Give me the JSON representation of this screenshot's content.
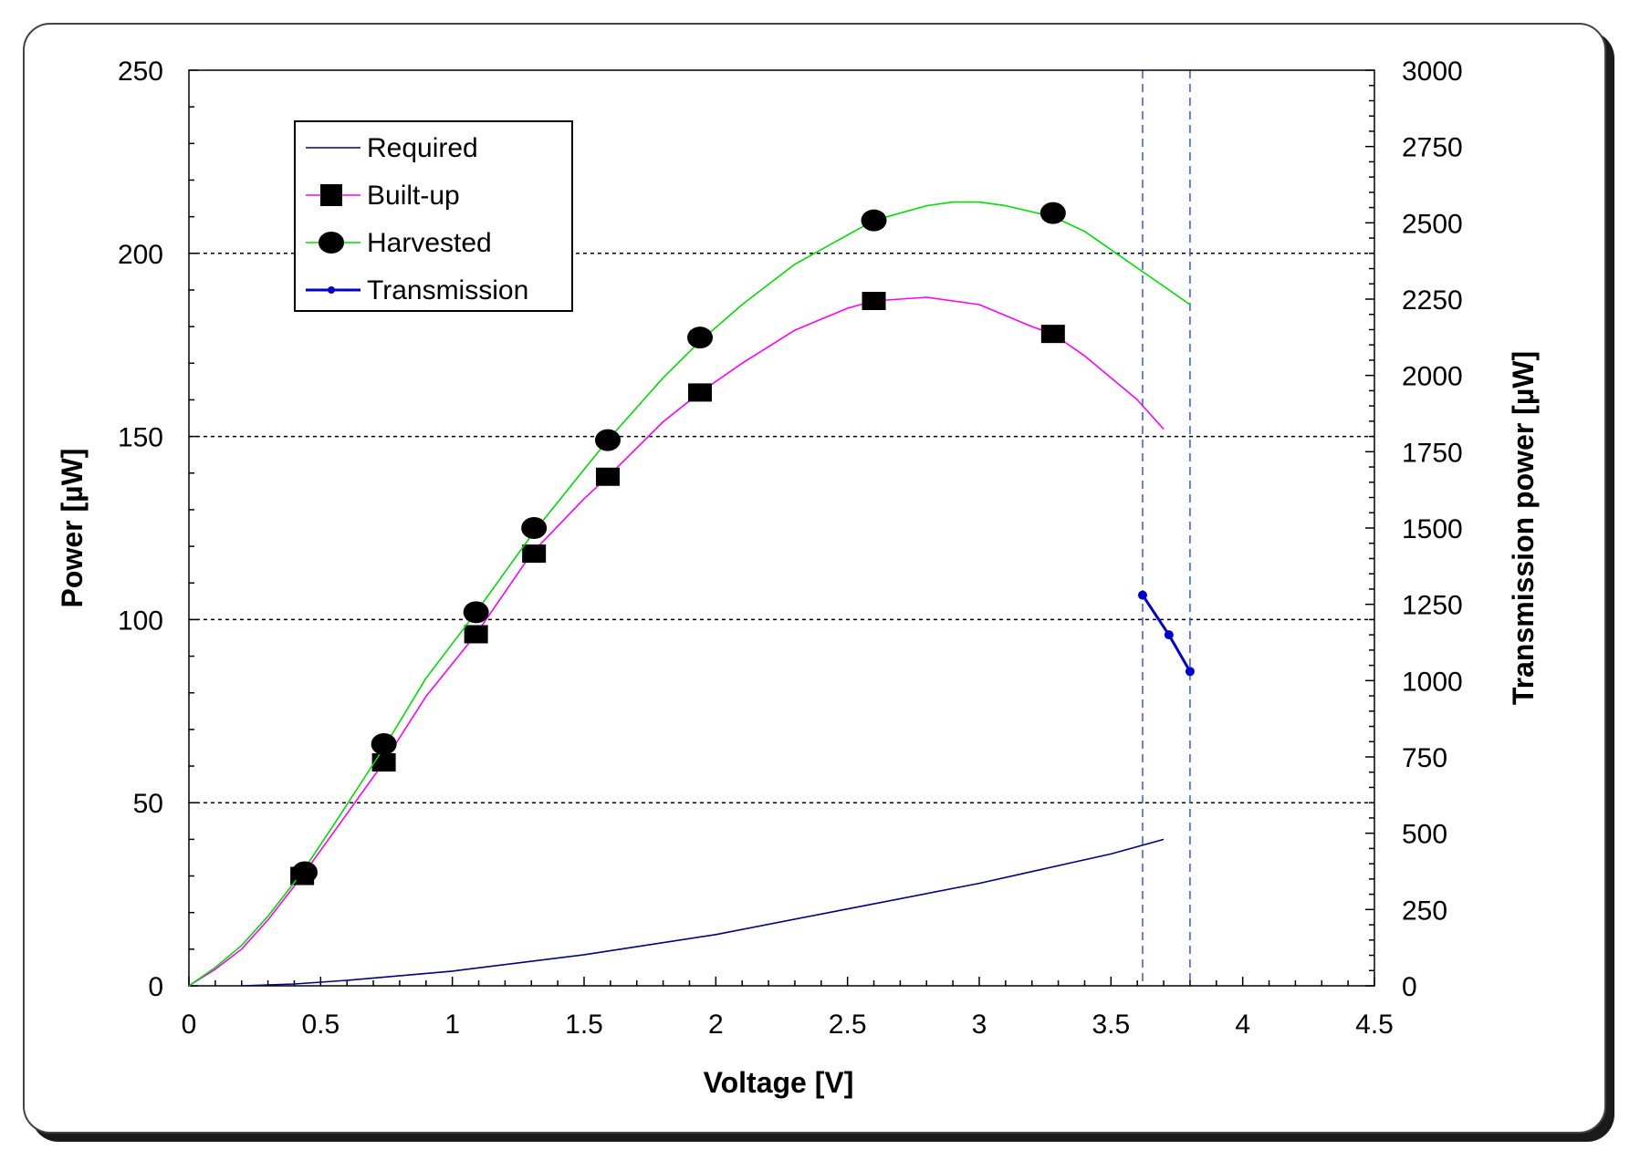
{
  "chart_data": {
    "type": "line",
    "title": "",
    "xlabel": "Voltage [V]",
    "ylabel": "Power [µW]",
    "y2label": "Transmission power [µW]",
    "xlim": [
      0,
      4.5
    ],
    "ylim": [
      0,
      250
    ],
    "y2lim": [
      0,
      3000
    ],
    "xticks": [
      0,
      0.5,
      1,
      1.5,
      2,
      2.5,
      3,
      3.5,
      4,
      4.5
    ],
    "xtick_labels": [
      "0",
      "0.5",
      "1",
      "1.5",
      "2",
      "2.5",
      "3",
      "3.5",
      "4",
      "4.5"
    ],
    "yticks": [
      0,
      50,
      100,
      150,
      200,
      250
    ],
    "ytick_labels": [
      "0",
      "50",
      "100",
      "150",
      "200",
      "250"
    ],
    "y2ticks": [
      0,
      250,
      500,
      750,
      1000,
      1250,
      1500,
      1750,
      2000,
      2250,
      2500,
      2750,
      3000
    ],
    "y2tick_labels": [
      "0",
      "250",
      "500",
      "750",
      "1000",
      "1250",
      "1500",
      "1750",
      "2000",
      "2250",
      "2500",
      "2750",
      "3000"
    ],
    "grid": "horizontal dashed at major y ticks",
    "vlines": [
      3.62,
      3.8
    ],
    "legend": {
      "position": "top-left",
      "entries": [
        "Required",
        "Built-up",
        "Harvested",
        "Transmission"
      ]
    },
    "series": [
      {
        "name": "Required",
        "axis": "left",
        "color": "#000080",
        "marker": "none",
        "x": [
          0.2,
          0.4,
          0.6,
          1.0,
          1.5,
          2.0,
          2.5,
          3.0,
          3.5,
          3.7
        ],
        "y": [
          0,
          0.5,
          1.5,
          4,
          8.5,
          14,
          21,
          28,
          36,
          40
        ]
      },
      {
        "name": "Built-up",
        "axis": "left",
        "color": "#ff00ff",
        "marker": "square",
        "curve_x": [
          0,
          0.1,
          0.2,
          0.3,
          0.43,
          0.55,
          0.74,
          0.9,
          1.09,
          1.3,
          1.5,
          1.59,
          1.8,
          1.94,
          2.1,
          2.3,
          2.5,
          2.6,
          2.8,
          3.0,
          3.2,
          3.28,
          3.4,
          3.5,
          3.6,
          3.7
        ],
        "curve_y": [
          0,
          4.5,
          10,
          18,
          30,
          42,
          61,
          79,
          96,
          118,
          133,
          139,
          154,
          162,
          170,
          179,
          185,
          187,
          188,
          186,
          180,
          178,
          172,
          166,
          160,
          152
        ],
        "points_x": [
          0.43,
          0.74,
          1.09,
          1.31,
          1.59,
          1.94,
          2.6,
          3.28
        ],
        "points_y": [
          30,
          61,
          96,
          118,
          139,
          162,
          187,
          178
        ]
      },
      {
        "name": "Harvested",
        "axis": "left",
        "color": "#00dd00",
        "marker": "circle",
        "curve_x": [
          0,
          0.1,
          0.2,
          0.3,
          0.43,
          0.55,
          0.74,
          0.9,
          1.09,
          1.31,
          1.5,
          1.59,
          1.8,
          1.94,
          2.1,
          2.3,
          2.5,
          2.6,
          2.8,
          2.9,
          3.0,
          3.1,
          3.28,
          3.4,
          3.5,
          3.6,
          3.7,
          3.8
        ],
        "curve_y": [
          0,
          5,
          11,
          19,
          31,
          44,
          65,
          84,
          102,
          124,
          141,
          149,
          166,
          176,
          186,
          197,
          205,
          209,
          213,
          214,
          214,
          213,
          210,
          206,
          201,
          196,
          191,
          186
        ],
        "points_x": [
          0.44,
          0.74,
          1.09,
          1.31,
          1.59,
          1.94,
          2.6,
          3.28
        ],
        "points_y": [
          31,
          66,
          102,
          125,
          149,
          177,
          209,
          211
        ]
      },
      {
        "name": "Transmission",
        "axis": "right",
        "color": "#0000cc",
        "marker": "dot",
        "x": [
          3.62,
          3.72,
          3.8
        ],
        "y": [
          1280,
          1150,
          1030
        ]
      }
    ]
  }
}
